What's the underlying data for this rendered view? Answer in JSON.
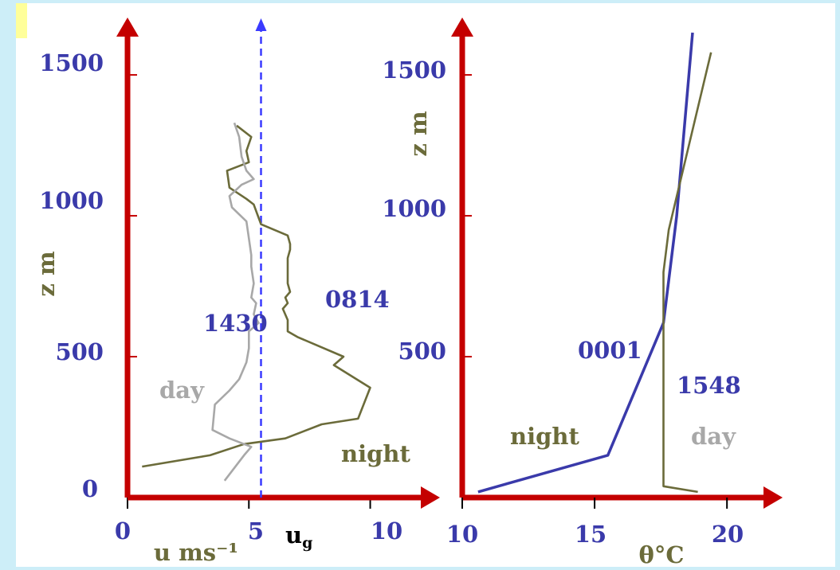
{
  "colors": {
    "axis": "#c40000",
    "blue": "#3a3aaa",
    "olive": "#6b6b3a",
    "grey": "#a8a8a8"
  },
  "chart_data": [
    {
      "type": "line",
      "title": "",
      "xlabel": "u ms⁻¹",
      "ylabel": "z m",
      "xlim": [
        0,
        11
      ],
      "ylim": [
        0,
        1650
      ],
      "xticks": [
        "0",
        "5",
        "10"
      ],
      "yticks": [
        "0",
        "500",
        "1000",
        "1500"
      ],
      "reference_line": {
        "label": "u",
        "subscript": "g",
        "x": 5.5,
        "style": "dashed"
      },
      "series": [
        {
          "name": "0814",
          "tag": "night",
          "color": "olive",
          "points": [
            [
              0.6,
              110
            ],
            [
              3.4,
              150
            ],
            [
              4.8,
              190
            ],
            [
              6.5,
              210
            ],
            [
              8.0,
              260
            ],
            [
              9.5,
              280
            ],
            [
              10.0,
              390
            ],
            [
              8.5,
              470
            ],
            [
              8.9,
              500
            ],
            [
              7.0,
              570
            ],
            [
              6.6,
              590
            ],
            [
              6.6,
              630
            ],
            [
              6.4,
              670
            ],
            [
              6.6,
              690
            ],
            [
              6.5,
              710
            ],
            [
              6.7,
              730
            ],
            [
              6.6,
              760
            ],
            [
              6.6,
              850
            ],
            [
              6.7,
              880
            ],
            [
              6.7,
              900
            ],
            [
              6.6,
              930
            ],
            [
              5.5,
              970
            ],
            [
              5.2,
              1040
            ],
            [
              4.9,
              1060
            ],
            [
              4.2,
              1100
            ],
            [
              4.1,
              1160
            ],
            [
              5.0,
              1190
            ],
            [
              4.9,
              1230
            ],
            [
              5.1,
              1280
            ],
            [
              4.5,
              1320
            ]
          ]
        },
        {
          "name": "1430",
          "tag": "day",
          "color": "grey",
          "points": [
            [
              4.0,
              60
            ],
            [
              4.8,
              150
            ],
            [
              5.1,
              180
            ],
            [
              4.2,
              210
            ],
            [
              3.5,
              240
            ],
            [
              3.6,
              330
            ],
            [
              4.2,
              380
            ],
            [
              4.6,
              420
            ],
            [
              4.9,
              480
            ],
            [
              5.0,
              530
            ],
            [
              5.0,
              590
            ],
            [
              5.4,
              620
            ],
            [
              5.2,
              650
            ],
            [
              5.3,
              690
            ],
            [
              5.1,
              710
            ],
            [
              5.2,
              760
            ],
            [
              5.1,
              820
            ],
            [
              5.1,
              860
            ],
            [
              5.0,
              920
            ],
            [
              4.9,
              980
            ],
            [
              4.3,
              1030
            ],
            [
              4.2,
              1070
            ],
            [
              4.7,
              1110
            ],
            [
              5.2,
              1130
            ],
            [
              4.9,
              1160
            ],
            [
              4.7,
              1210
            ],
            [
              4.6,
              1280
            ],
            [
              4.4,
              1330
            ]
          ]
        }
      ]
    },
    {
      "type": "line",
      "title": "",
      "xlabel": "θ°C",
      "ylabel": "z m",
      "xlim": [
        10,
        21.5
      ],
      "ylim": [
        0,
        1650
      ],
      "xticks": [
        "10",
        "15",
        "20"
      ],
      "yticks": [
        "500",
        "1000",
        "1500"
      ],
      "series": [
        {
          "name": "0001",
          "tag": "night",
          "color": "blue",
          "points": [
            [
              10.6,
              20
            ],
            [
              15.5,
              150
            ],
            [
              17.6,
              620
            ],
            [
              18.1,
              1000
            ],
            [
              18.7,
              1650
            ]
          ]
        },
        {
          "name": "1548",
          "tag": "day",
          "color": "olive",
          "points": [
            [
              18.9,
              20
            ],
            [
              17.6,
              40
            ],
            [
              17.6,
              800
            ],
            [
              17.8,
              950
            ],
            [
              19.4,
              1580
            ]
          ]
        }
      ]
    }
  ],
  "annotations": {
    "left_night_label": "0814",
    "left_day_label": "1430",
    "left_night_word": "night",
    "left_day_word": "day",
    "right_night_label": "0001",
    "right_day_label": "1548",
    "right_night_word": "night",
    "right_day_word": "day"
  }
}
